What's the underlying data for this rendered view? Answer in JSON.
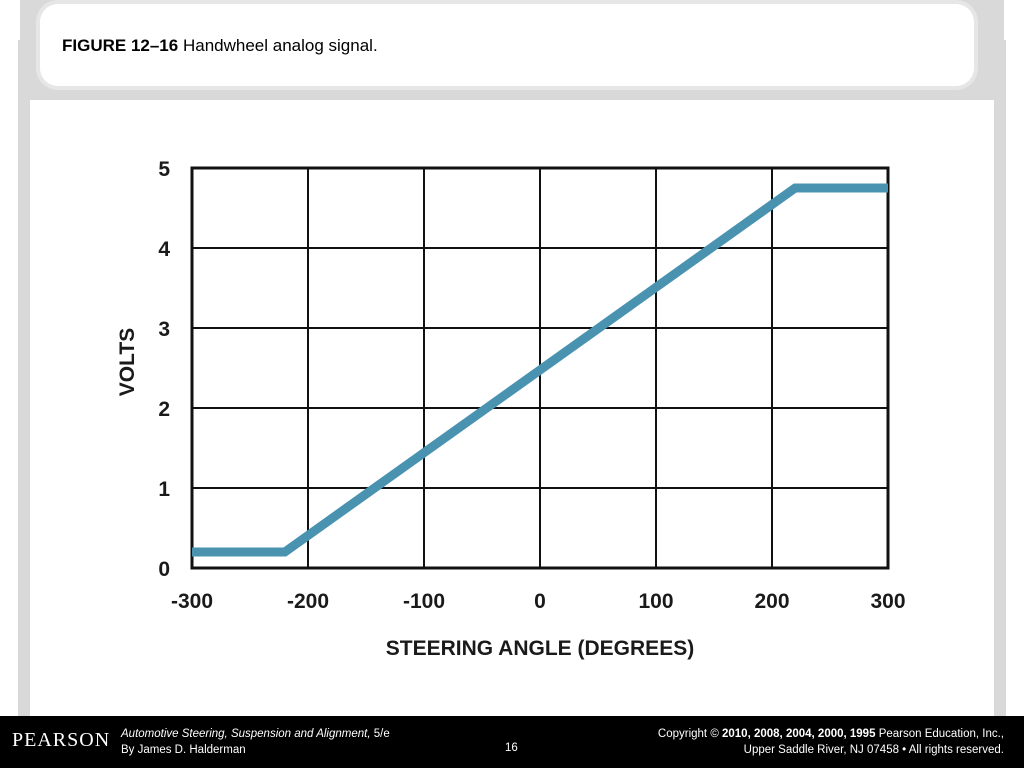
{
  "slide": {
    "figure_label": "FIGURE 12–16",
    "figure_caption": "Handwheel analog signal."
  },
  "chart_data": {
    "type": "line",
    "xlabel": "STEERING ANGLE (DEGREES)",
    "ylabel": "VOLTS",
    "xlim": [
      -300,
      300
    ],
    "ylim": [
      0,
      5
    ],
    "x_ticks": [
      "-300",
      "-200",
      "-100",
      "0",
      "100",
      "200",
      "300"
    ],
    "y_ticks": [
      "0",
      "1",
      "2",
      "3",
      "4",
      "5"
    ],
    "grid": true,
    "line_color": "#4a93b0",
    "series": [
      {
        "x": [
          -300,
          -220,
          220,
          300
        ],
        "y": [
          0.2,
          0.2,
          4.75,
          4.75
        ]
      }
    ]
  },
  "footer": {
    "logo": "PEARSON",
    "book_title": "Automotive Steering, Suspension and Alignment,",
    "edition": " 5/e",
    "author": "By James D. Halderman",
    "page_number": "16",
    "copyright_prefix": "Copyright ©",
    "copyright_years": "2010, 2008, 2004, 2000, 1995",
    "publisher": "Pearson Education, Inc.,",
    "address": "Upper Saddle River, NJ 07458 • All rights reserved."
  }
}
